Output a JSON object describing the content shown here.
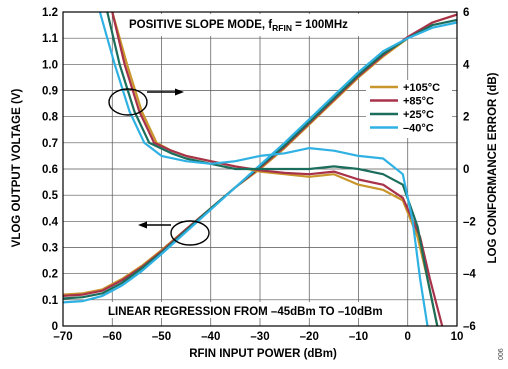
{
  "chart_data": {
    "type": "line",
    "title": "POSITIVE SLOPE MODE, f",
    "title_sub": "RFIN",
    "title_suffix": " = 100MHz",
    "xlabel": "RFIN INPUT POWER (dBm)",
    "ylabel": "VLOG OUTPUT VOLTAGE (V)",
    "y2label": "LOG CONFORMANCE ERROR (dB)",
    "xlim": [
      -70,
      10
    ],
    "ylim": [
      0,
      1.2
    ],
    "y2lim": [
      -6,
      6
    ],
    "x_ticks": [
      "-70",
      "-60",
      "-50",
      "-40",
      "-30",
      "-20",
      "-10",
      "0",
      "10"
    ],
    "y_ticks": [
      "0",
      "0.1",
      "0.2",
      "0.3",
      "0.4",
      "0.5",
      "0.6",
      "0.7",
      "0.8",
      "0.9",
      "1.0",
      "1.1",
      "1.2"
    ],
    "y2_ticks": [
      "-6",
      "-4",
      "-2",
      "0",
      "2",
      "4",
      "6"
    ],
    "grid": true,
    "legend_position": "right",
    "annotation": "LINEAR REGRESSION FROM –45dBm TO –10dBm",
    "figure_id": "006",
    "series": [
      {
        "name": "+105°C",
        "color": "#c9962b",
        "vlog": [
          [
            -70,
            0.12
          ],
          [
            -66,
            0.125
          ],
          [
            -62,
            0.14
          ],
          [
            -58,
            0.18
          ],
          [
            -54,
            0.23
          ],
          [
            -50,
            0.29
          ],
          [
            -45,
            0.37
          ],
          [
            -40,
            0.45
          ],
          [
            -35,
            0.53
          ],
          [
            -30,
            0.6
          ],
          [
            -25,
            0.68
          ],
          [
            -20,
            0.77
          ],
          [
            -15,
            0.86
          ],
          [
            -10,
            0.95
          ],
          [
            -5,
            1.03
          ],
          [
            0,
            1.1
          ],
          [
            5,
            1.16
          ],
          [
            10,
            1.19
          ]
        ],
        "error": [
          [
            -60,
            6.0
          ],
          [
            -57,
            4.0
          ],
          [
            -54,
            2.2
          ],
          [
            -51,
            1.0
          ],
          [
            -48,
            0.7
          ],
          [
            -45,
            0.5
          ],
          [
            -40,
            0.3
          ],
          [
            -35,
            0.1
          ],
          [
            -30,
            -0.1
          ],
          [
            -25,
            -0.2
          ],
          [
            -20,
            -0.3
          ],
          [
            -15,
            -0.2
          ],
          [
            -10,
            -0.6
          ],
          [
            -5,
            -0.8
          ],
          [
            -1,
            -1.2
          ],
          [
            2,
            -2.6
          ],
          [
            4,
            -4.2
          ],
          [
            6,
            -6.0
          ]
        ]
      },
      {
        "name": "+85°C",
        "color": "#a8324a",
        "vlog": [
          [
            -70,
            0.115
          ],
          [
            -66,
            0.12
          ],
          [
            -62,
            0.135
          ],
          [
            -58,
            0.175
          ],
          [
            -54,
            0.225
          ],
          [
            -50,
            0.285
          ],
          [
            -45,
            0.37
          ],
          [
            -40,
            0.45
          ],
          [
            -35,
            0.53
          ],
          [
            -30,
            0.605
          ],
          [
            -25,
            0.685
          ],
          [
            -20,
            0.775
          ],
          [
            -15,
            0.865
          ],
          [
            -10,
            0.955
          ],
          [
            -5,
            1.035
          ],
          [
            0,
            1.105
          ],
          [
            5,
            1.16
          ],
          [
            10,
            1.19
          ]
        ],
        "error": [
          [
            -60,
            6.0
          ],
          [
            -57.5,
            4.0
          ],
          [
            -54.5,
            2.2
          ],
          [
            -51.5,
            1.0
          ],
          [
            -48,
            0.7
          ],
          [
            -45,
            0.5
          ],
          [
            -40,
            0.3
          ],
          [
            -35,
            0.1
          ],
          [
            -30,
            -0.05
          ],
          [
            -25,
            -0.15
          ],
          [
            -20,
            -0.2
          ],
          [
            -15,
            -0.1
          ],
          [
            -10,
            -0.4
          ],
          [
            -5,
            -0.6
          ],
          [
            -1,
            -1.1
          ],
          [
            2.5,
            -2.6
          ],
          [
            4.5,
            -4.2
          ],
          [
            7,
            -6.0
          ]
        ]
      },
      {
        "name": "+25°C",
        "color": "#1b6e5c",
        "vlog": [
          [
            -70,
            0.105
          ],
          [
            -66,
            0.11
          ],
          [
            -62,
            0.125
          ],
          [
            -58,
            0.165
          ],
          [
            -54,
            0.22
          ],
          [
            -50,
            0.28
          ],
          [
            -45,
            0.365
          ],
          [
            -40,
            0.45
          ],
          [
            -35,
            0.53
          ],
          [
            -30,
            0.61
          ],
          [
            -25,
            0.69
          ],
          [
            -20,
            0.78
          ],
          [
            -15,
            0.87
          ],
          [
            -10,
            0.96
          ],
          [
            -5,
            1.04
          ],
          [
            0,
            1.1
          ],
          [
            5,
            1.15
          ],
          [
            10,
            1.17
          ]
        ],
        "error": [
          [
            -61,
            6.0
          ],
          [
            -58.5,
            4.0
          ],
          [
            -55.5,
            2.2
          ],
          [
            -52.5,
            1.0
          ],
          [
            -48,
            0.6
          ],
          [
            -45,
            0.4
          ],
          [
            -40,
            0.2
          ],
          [
            -35,
            0.0
          ],
          [
            -30,
            0.0
          ],
          [
            -25,
            0.0
          ],
          [
            -20,
            0.0
          ],
          [
            -15,
            0.1
          ],
          [
            -10,
            0.0
          ],
          [
            -5,
            -0.2
          ],
          [
            -1,
            -0.6
          ],
          [
            2,
            -2.2
          ],
          [
            4,
            -4.2
          ],
          [
            6,
            -6.0
          ]
        ]
      },
      {
        "name": "–40°C",
        "color": "#2fb1e3",
        "vlog": [
          [
            -70,
            0.09
          ],
          [
            -66,
            0.095
          ],
          [
            -62,
            0.115
          ],
          [
            -58,
            0.155
          ],
          [
            -54,
            0.21
          ],
          [
            -50,
            0.275
          ],
          [
            -45,
            0.36
          ],
          [
            -40,
            0.445
          ],
          [
            -35,
            0.53
          ],
          [
            -30,
            0.615
          ],
          [
            -25,
            0.7
          ],
          [
            -20,
            0.79
          ],
          [
            -15,
            0.88
          ],
          [
            -10,
            0.97
          ],
          [
            -5,
            1.05
          ],
          [
            0,
            1.1
          ],
          [
            5,
            1.14
          ],
          [
            10,
            1.16
          ]
        ],
        "error": [
          [
            -62.5,
            6.0
          ],
          [
            -59.5,
            4.0
          ],
          [
            -56.5,
            2.2
          ],
          [
            -53.5,
            1.0
          ],
          [
            -50,
            0.5
          ],
          [
            -45,
            0.3
          ],
          [
            -40,
            0.2
          ],
          [
            -35,
            0.3
          ],
          [
            -30,
            0.5
          ],
          [
            -25,
            0.6
          ],
          [
            -20,
            0.8
          ],
          [
            -15,
            0.7
          ],
          [
            -10,
            0.5
          ],
          [
            -5,
            0.4
          ],
          [
            -1,
            -0.2
          ],
          [
            1,
            -2.0
          ],
          [
            2.5,
            -4.2
          ],
          [
            4,
            -6.0
          ]
        ]
      }
    ]
  }
}
